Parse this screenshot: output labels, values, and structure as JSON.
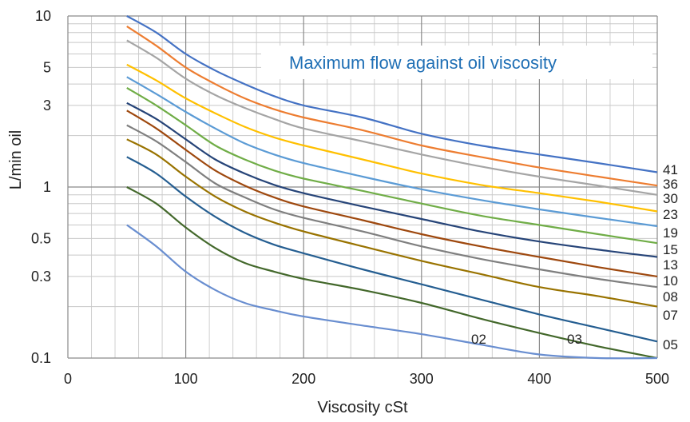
{
  "chart_data": {
    "type": "line",
    "title": "Maximum flow against oil viscosity",
    "title_color": "#1f6fb5",
    "xlabel": "Viscosity cSt",
    "ylabel": "L/min oil",
    "x_scale": "linear",
    "y_scale": "log",
    "xlim": [
      0,
      500
    ],
    "ylim": [
      0.1,
      10
    ],
    "x_ticks": [
      0,
      100,
      200,
      300,
      400,
      500
    ],
    "x_tick_labels": [
      "0",
      "100",
      "200",
      "300",
      "400",
      "500"
    ],
    "y_ticks": [
      0.1,
      0.3,
      0.5,
      1,
      3,
      5,
      10
    ],
    "y_tick_labels": [
      "0.1",
      "0.3",
      "0.5",
      "1",
      "3",
      "5",
      "10"
    ],
    "grid": true,
    "x": [
      50,
      75,
      100,
      125,
      150,
      175,
      200,
      250,
      300,
      350,
      400,
      450,
      500
    ],
    "series": [
      {
        "name": "41",
        "color": "#4472c4",
        "values": [
          10,
          8.0,
          6.0,
          4.8,
          4.0,
          3.4,
          3.0,
          2.55,
          2.05,
          1.75,
          1.55,
          1.38,
          1.22
        ]
      },
      {
        "name": "36",
        "color": "#ed7d31",
        "values": [
          8.7,
          6.7,
          5.0,
          4.0,
          3.3,
          2.85,
          2.55,
          2.15,
          1.75,
          1.5,
          1.3,
          1.15,
          1.02
        ]
      },
      {
        "name": "30",
        "color": "#a5a5a5",
        "values": [
          7.2,
          5.7,
          4.3,
          3.45,
          2.9,
          2.5,
          2.2,
          1.85,
          1.55,
          1.32,
          1.15,
          1.02,
          0.9
        ]
      },
      {
        "name": "23",
        "color": "#ffc000",
        "values": [
          5.2,
          4.2,
          3.3,
          2.7,
          2.25,
          1.95,
          1.75,
          1.45,
          1.2,
          1.03,
          0.92,
          0.82,
          0.72
        ]
      },
      {
        "name": "19",
        "color": "#5b9bd5",
        "values": [
          4.4,
          3.5,
          2.75,
          2.2,
          1.8,
          1.55,
          1.38,
          1.15,
          0.97,
          0.84,
          0.74,
          0.66,
          0.59
        ]
      },
      {
        "name": "15",
        "color": "#70ad47",
        "values": [
          3.8,
          3.0,
          2.3,
          1.75,
          1.45,
          1.25,
          1.12,
          0.95,
          0.8,
          0.68,
          0.6,
          0.53,
          0.47
        ]
      },
      {
        "name": "13",
        "color": "#264478",
        "values": [
          3.1,
          2.5,
          1.9,
          1.45,
          1.2,
          1.03,
          0.92,
          0.77,
          0.65,
          0.55,
          0.48,
          0.43,
          0.39
        ]
      },
      {
        "name": "10",
        "color": "#9e480e",
        "values": [
          2.8,
          2.2,
          1.65,
          1.25,
          1.02,
          0.87,
          0.77,
          0.64,
          0.53,
          0.45,
          0.39,
          0.34,
          0.3
        ]
      },
      {
        "name": "08",
        "color": "#7f7f7f",
        "values": [
          2.3,
          1.85,
          1.4,
          1.05,
          0.87,
          0.74,
          0.66,
          0.55,
          0.45,
          0.38,
          0.33,
          0.29,
          0.26
        ]
      },
      {
        "name": "07",
        "color": "#997300",
        "values": [
          1.9,
          1.55,
          1.15,
          0.88,
          0.72,
          0.62,
          0.55,
          0.45,
          0.37,
          0.31,
          0.26,
          0.23,
          0.2
        ]
      },
      {
        "name": "05",
        "color": "#255e91",
        "values": [
          1.5,
          1.2,
          0.88,
          0.67,
          0.54,
          0.46,
          0.41,
          0.33,
          0.27,
          0.22,
          0.18,
          0.15,
          0.125
        ]
      },
      {
        "name": "03",
        "color": "#43682b",
        "values": [
          1.0,
          0.8,
          0.58,
          0.44,
          0.36,
          0.32,
          0.29,
          0.25,
          0.21,
          0.17,
          0.14,
          0.117,
          0.1
        ]
      },
      {
        "name": "02",
        "color": "#698ed0",
        "values": [
          0.6,
          0.45,
          0.32,
          0.25,
          0.21,
          0.19,
          0.175,
          0.155,
          0.138,
          0.12,
          0.105,
          0.1,
          0.1
        ]
      }
    ],
    "series_label_positions": "right edge; 02 and 03 labelled inside plot near bottom"
  }
}
